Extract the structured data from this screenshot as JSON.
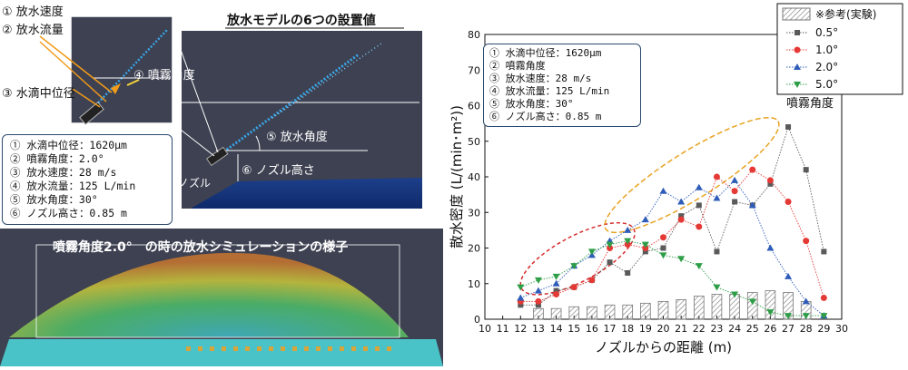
{
  "left_panel": {
    "title": "放水モデルの6つの設置値",
    "callouts": {
      "speed": "① 放水速度",
      "flow": "② 放水流量",
      "droplet": "③ 水滴中位径",
      "spray_angle": "④ 噴霧角度",
      "discharge_angle": "⑤ 放水角度",
      "nozzle_height": "⑥ ノズル高さ",
      "nozzle": "ノズル"
    },
    "parameters": [
      {
        "key": "① 水滴中位径",
        "value": "：1620μm"
      },
      {
        "key": "② 噴霧角度",
        "value": "：2.0°"
      },
      {
        "key": "③ 放水速度",
        "value": "：28 m/s"
      },
      {
        "key": "④ 放水流量",
        "value": "：125 L/min"
      },
      {
        "key": "⑤ 放水角度",
        "value": "：30°"
      },
      {
        "key": "⑥ ノズル高さ",
        "value": "：0.85 m"
      }
    ],
    "simulation_caption": "噴霧角度2.0°　の時の放水シミュレーションの様子"
  },
  "chart_parameters": [
    {
      "key": "① 水滴中位径",
      "value": "：1620μm"
    },
    {
      "key": "② 噴霧角度",
      "value": ""
    },
    {
      "key": "③ 放水速度",
      "value": "：28 m/s"
    },
    {
      "key": "④ 放水流量",
      "value": "：125 L/min"
    },
    {
      "key": "⑤ 放水角度",
      "value": "：30°"
    },
    {
      "key": "⑥ ノズル高さ",
      "value": "：0.85 m"
    }
  ],
  "chart_data": {
    "type": "line",
    "xlabel": "ノズルからの距離 (m)",
    "ylabel": "散水密度 (L/(min･m²))",
    "xlim": [
      10,
      30
    ],
    "ylim": [
      0,
      80
    ],
    "xticks": [
      10,
      11,
      12,
      13,
      14,
      15,
      16,
      17,
      18,
      19,
      20,
      21,
      22,
      23,
      24,
      25,
      26,
      27,
      28,
      29,
      30
    ],
    "yticks": [
      0,
      10,
      20,
      30,
      40,
      50,
      60,
      70,
      80
    ],
    "legend_note": "噴霧角度",
    "reference": {
      "name": "※参考(実験)",
      "type": "bar",
      "x": [
        13,
        14,
        15,
        16,
        17,
        18,
        19,
        20,
        21,
        22,
        23,
        24,
        25,
        26,
        27,
        28
      ],
      "values": [
        3,
        3,
        3.5,
        3.5,
        4,
        4,
        4.5,
        5,
        5.5,
        6.5,
        7,
        7,
        7.5,
        8,
        7.5,
        5
      ]
    },
    "series": [
      {
        "name": "0.5°",
        "color": "#5a5a5a",
        "marker": "square",
        "x": [
          12,
          13,
          14,
          15,
          16,
          17,
          18,
          19,
          20,
          21,
          22,
          23,
          24,
          25,
          26,
          27,
          28,
          29
        ],
        "values": [
          4,
          4,
          8,
          9,
          11,
          16,
          13,
          19,
          20,
          29,
          32,
          19,
          33,
          32,
          38,
          54,
          42,
          19
        ]
      },
      {
        "name": "1.0°",
        "color": "#e53935",
        "marker": "circle",
        "x": [
          12,
          13,
          14,
          15,
          16,
          17,
          18,
          19,
          20,
          21,
          22,
          23,
          24,
          25,
          26,
          27,
          28,
          29
        ],
        "values": [
          5,
          5,
          7,
          9,
          11,
          20,
          21,
          20,
          23,
          28,
          26,
          40,
          36,
          42,
          39,
          33,
          22,
          6
        ]
      },
      {
        "name": "2.0°",
        "color": "#2e5cb8",
        "marker": "triangle-up",
        "x": [
          12,
          13,
          14,
          15,
          16,
          17,
          18,
          19,
          20,
          21,
          22,
          23,
          24,
          25,
          26,
          27,
          28,
          29
        ],
        "values": [
          6,
          8,
          10,
          15,
          18,
          22,
          25,
          28,
          36,
          33,
          37,
          34,
          39,
          32,
          20,
          12,
          5,
          1
        ]
      },
      {
        "name": "5.0°",
        "color": "#2e9e47",
        "marker": "triangle-down",
        "x": [
          12,
          13,
          14,
          15,
          16,
          17,
          18,
          19,
          20,
          21,
          22,
          23,
          24,
          25,
          26,
          27,
          28,
          29
        ],
        "values": [
          9,
          11,
          12,
          15,
          19,
          21,
          22,
          21,
          18,
          17,
          15,
          9,
          7,
          5,
          2,
          1,
          1,
          1
        ]
      }
    ]
  }
}
